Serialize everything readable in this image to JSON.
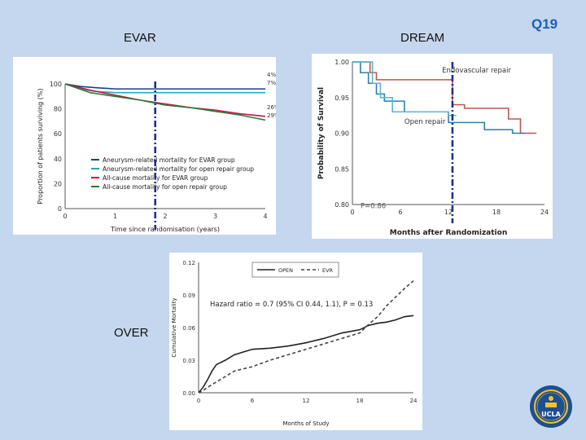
{
  "slide": {
    "label_evar": "EVAR",
    "label_dream": "DREAM",
    "label_over": "OVER",
    "label_q": "Q19",
    "logo_text": "UCLA",
    "colors": {
      "background": "#c5d7ee",
      "accent": "#1a5fb4",
      "marker": "#1e2f8c"
    }
  },
  "chart_data": [
    {
      "type": "line",
      "xlabel": "Time since randomisation (years)",
      "ylabel": "Proportion of patients surviving (%)",
      "xlim": [
        0,
        4
      ],
      "ylim": [
        0,
        100
      ],
      "xticks": [
        "0",
        "1",
        "2",
        "3",
        "4"
      ],
      "yticks": [
        "0",
        "20",
        "40",
        "60",
        "80",
        "100"
      ],
      "series": [
        {
          "name": "Aneurysm-related mortality for EVAR group",
          "color": "#1f3f8c",
          "x": [
            0,
            0.3,
            0.6,
            1.0,
            2.0,
            3.0,
            4.0
          ],
          "values": [
            100,
            98,
            97,
            96,
            96,
            96,
            96
          ]
        },
        {
          "name": "Aneurysm-related mortality for open repair group",
          "color": "#27a3c4",
          "x": [
            0,
            0.3,
            0.6,
            1.0,
            2.0,
            3.0,
            4.0
          ],
          "values": [
            100,
            96,
            94,
            93,
            93,
            93,
            93
          ]
        },
        {
          "name": "All-cause mortality for EVAR group",
          "color": "#c0174a",
          "x": [
            0,
            0.5,
            1.0,
            1.5,
            2.0,
            2.5,
            3.0,
            3.5,
            4.0
          ],
          "values": [
            100,
            95,
            91,
            87,
            84,
            81,
            79,
            76,
            74
          ]
        },
        {
          "name": "All-cause mortality for open repair group",
          "color": "#2e7a3a",
          "x": [
            0,
            0.5,
            1.0,
            1.5,
            2.0,
            2.5,
            3.0,
            3.5,
            4.0
          ],
          "values": [
            100,
            93,
            90,
            87,
            83,
            81,
            78,
            75,
            71
          ]
        }
      ],
      "end_labels": [
        "4%*",
        "7%*",
        "26%*",
        "29%*"
      ],
      "marker_x": 1.8
    },
    {
      "type": "line",
      "xlabel": "Months after Randomization",
      "ylabel": "Probability of Survival",
      "xlim": [
        0,
        24
      ],
      "ylim": [
        0.8,
        1.0
      ],
      "xticks": [
        "0",
        "6",
        "12",
        "18",
        "24"
      ],
      "yticks": [
        "0.80",
        "0.85",
        "0.90",
        "0.95",
        "1.00"
      ],
      "series": [
        {
          "name": "Endovascular repair",
          "color": "#c1564a",
          "x": [
            0,
            2.2,
            2.2,
            3.0,
            3.0,
            12.5,
            12.5,
            14,
            14,
            19.5,
            19.5,
            21,
            21,
            23
          ],
          "values": [
            1.0,
            1.0,
            0.985,
            0.985,
            0.975,
            0.975,
            0.94,
            0.94,
            0.935,
            0.935,
            0.92,
            0.92,
            0.9,
            0.9
          ]
        },
        {
          "name": "Open repair",
          "color": "#2f7fa8",
          "x": [
            0,
            1.0,
            1.0,
            2.0,
            2.0,
            3.0,
            3.0,
            4.0,
            4.0,
            6.5,
            6.5,
            12.0,
            12.0,
            16.5,
            16.5,
            20.0,
            20.0,
            21.5
          ],
          "values": [
            1.0,
            1.0,
            0.985,
            0.985,
            0.97,
            0.97,
            0.955,
            0.955,
            0.945,
            0.945,
            0.93,
            0.93,
            0.915,
            0.915,
            0.905,
            0.905,
            0.9,
            0.9
          ]
        },
        {
          "name": "",
          "color": "#58b8c8",
          "x": [
            0,
            2.5,
            2.5,
            3.5,
            3.5,
            5.0,
            5.0,
            12.0,
            12.0,
            13.0
          ],
          "values": [
            1.0,
            1.0,
            0.97,
            0.97,
            0.95,
            0.95,
            0.93,
            0.93,
            0.925,
            0.925
          ]
        }
      ],
      "annotations": [
        "P=0.86"
      ],
      "marker_x": 12.5
    },
    {
      "type": "line",
      "xlabel": "Months of Study",
      "ylabel": "Cumulative Mortality",
      "xlim": [
        0,
        24
      ],
      "ylim": [
        0,
        0.12
      ],
      "xticks": [
        "0",
        "6",
        "12",
        "18",
        "24"
      ],
      "yticks": [
        "0.00",
        "0.03",
        "0.06",
        "0.09",
        "0.12"
      ],
      "series": [
        {
          "name": "OPEN",
          "color": "#222222",
          "dash": "",
          "x": [
            0,
            0.5,
            1,
            1.5,
            2,
            3,
            4,
            6,
            8,
            10,
            12,
            14,
            16,
            18,
            19,
            20,
            21,
            22,
            23,
            24
          ],
          "values": [
            0,
            0.005,
            0.012,
            0.02,
            0.026,
            0.03,
            0.035,
            0.04,
            0.041,
            0.043,
            0.046,
            0.05,
            0.055,
            0.058,
            0.062,
            0.064,
            0.065,
            0.067,
            0.07,
            0.071
          ]
        },
        {
          "name": "EVR",
          "color": "#444444",
          "dash": "4,3",
          "x": [
            0,
            0.5,
            1,
            2,
            3,
            4,
            6,
            8,
            10,
            12,
            14,
            16,
            18,
            19,
            20,
            21,
            22,
            23,
            24
          ],
          "values": [
            0,
            0.002,
            0.005,
            0.01,
            0.015,
            0.02,
            0.024,
            0.03,
            0.035,
            0.04,
            0.045,
            0.05,
            0.055,
            0.063,
            0.07,
            0.08,
            0.088,
            0.096,
            0.103
          ]
        }
      ],
      "annotations": [
        "Hazard ratio = 0.7 (95% CI 0.44, 1.1), P = 0.13"
      ]
    }
  ]
}
